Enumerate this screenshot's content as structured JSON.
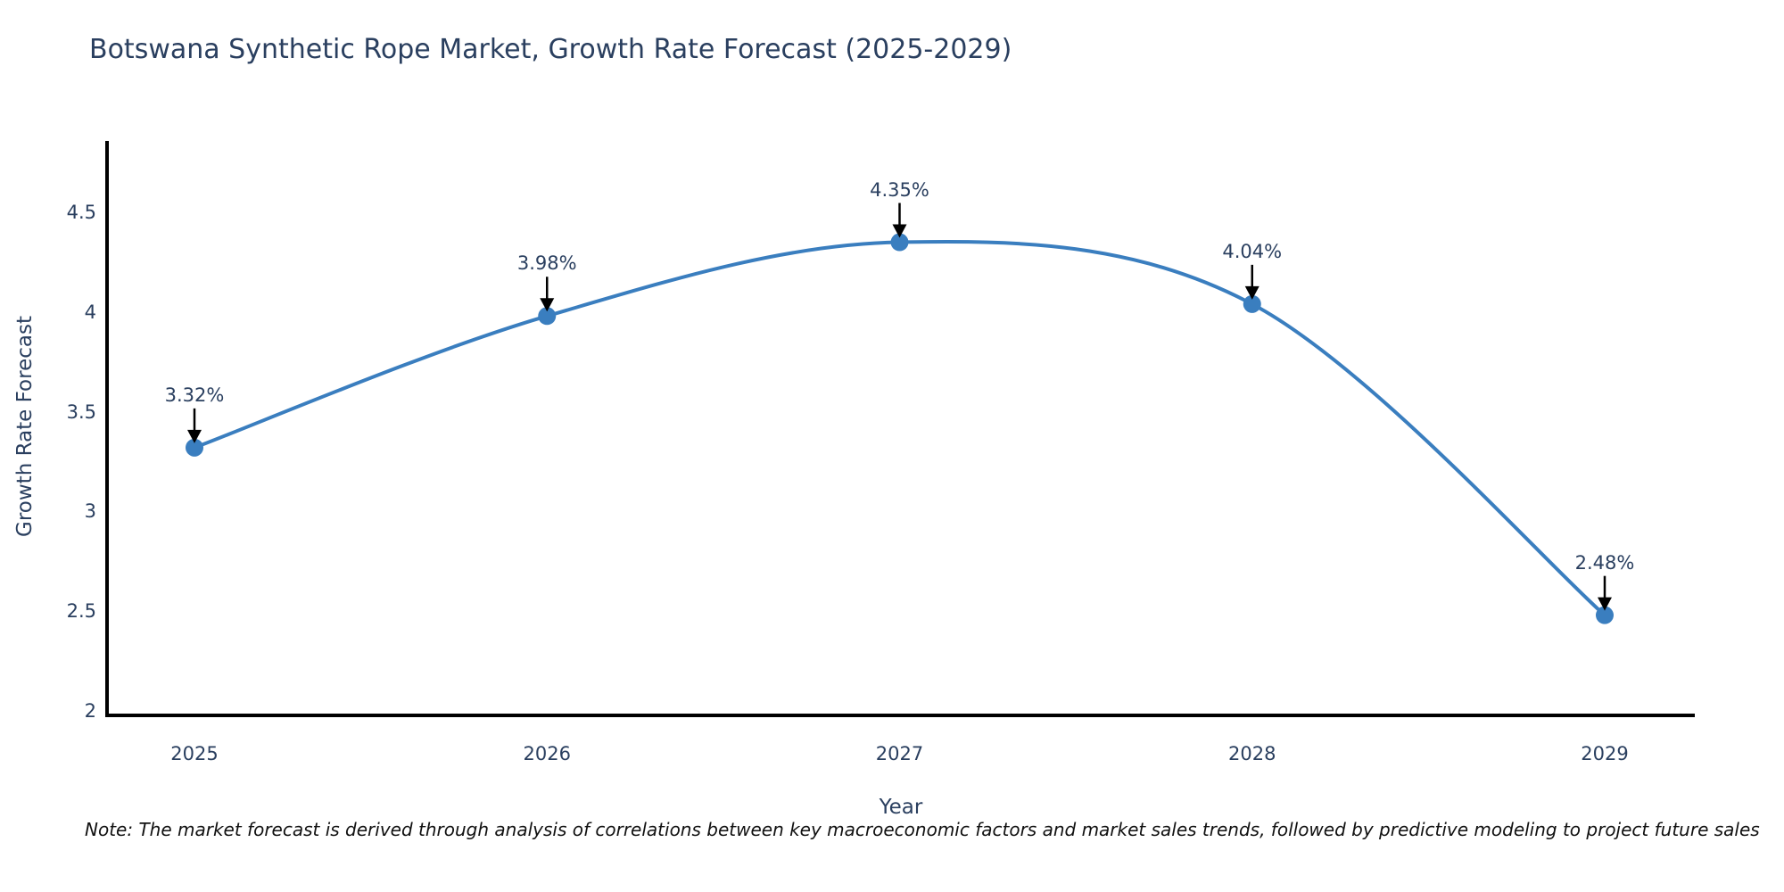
{
  "chart_data": {
    "type": "line",
    "title": "Botswana Synthetic Rope Market, Growth Rate Forecast (2025-2029)",
    "xlabel": "Year",
    "ylabel": "Growth Rate Forecast",
    "x": [
      2025,
      2026,
      2027,
      2028,
      2029
    ],
    "y": [
      3.32,
      3.98,
      4.35,
      4.04,
      2.48
    ],
    "point_labels": [
      "3.32%",
      "3.98%",
      "4.35%",
      "4.04%",
      "2.48%"
    ],
    "ytick_values": [
      2,
      2.5,
      3,
      3.5,
      4,
      4.5
    ],
    "ytick_labels": [
      "2",
      "2.5",
      "3",
      "3.5",
      "4",
      "4.5"
    ],
    "ylim": [
      2,
      4.9
    ],
    "line_shape": "spline",
    "grid": false,
    "legend_position": "none",
    "colors": {
      "line": "#3a7ebf",
      "marker": "#3a7ebf",
      "axis_line": "#000000",
      "annotation_arrow": "#000000",
      "text": "#2a3f5f",
      "note_text": "#111111",
      "background": "#ffffff"
    },
    "note": "Note: The market forecast is derived through analysis of correlations between key macroeconomic factors and market sales trends, followed by predictive modeling to project future sales"
  }
}
